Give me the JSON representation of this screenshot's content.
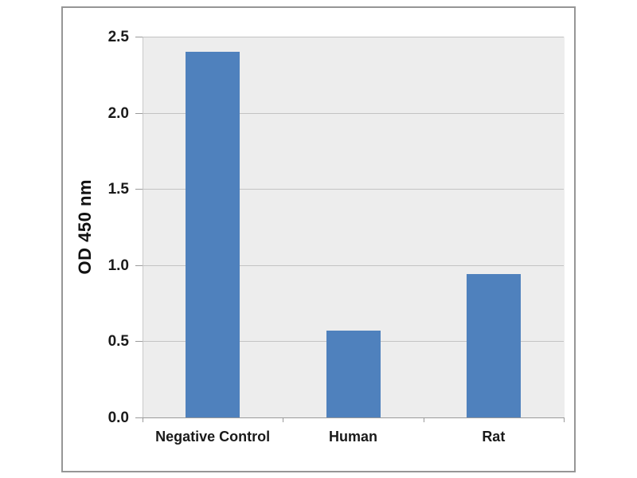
{
  "chart_data": {
    "type": "bar",
    "title": "",
    "categories": [
      "Negative Control",
      "Human",
      "Rat"
    ],
    "values": [
      2.4,
      0.57,
      0.94
    ],
    "xlabel": "",
    "ylabel": "OD 450 nm",
    "ylim": [
      0,
      2.5
    ],
    "ytick_values": [
      0.0,
      0.5,
      1.0,
      1.5,
      2.0,
      2.5
    ],
    "ytick_labels": [
      "0.0",
      "0.5",
      "1.0",
      "1.5",
      "2.0",
      "2.5"
    ],
    "grid": true,
    "legend_position": "none",
    "bar_color": "#4F81BD",
    "plot_background": "#EDEDED",
    "gridline_color": "#C3C3C3",
    "axis_color": "#9A9A9A",
    "frame_border_color": "#969696",
    "text_color": "#1A1A1A"
  }
}
